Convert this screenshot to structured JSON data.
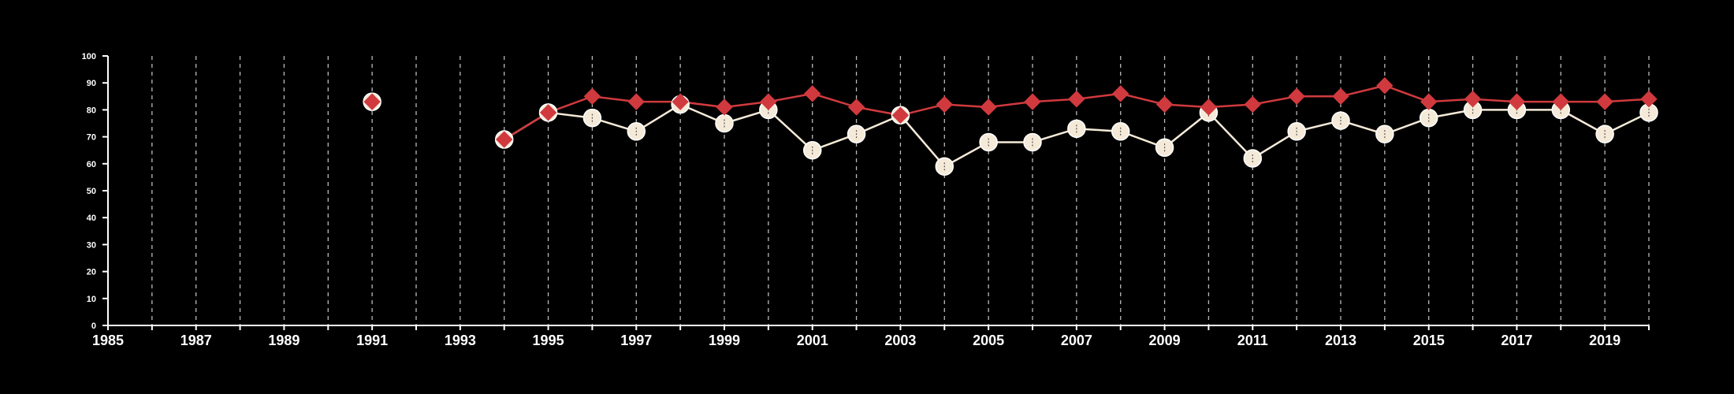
{
  "chart_data": {
    "type": "line",
    "title": "",
    "xlabel": "",
    "ylabel": "",
    "xlim": [
      1985,
      2020
    ],
    "ylim": [
      0,
      100
    ],
    "grid": "vertical dashed lines at every year",
    "x_tick_labels": [
      "1985",
      "1987",
      "1989",
      "1991",
      "1993",
      "1995",
      "1997",
      "1999",
      "2001",
      "2003",
      "2005",
      "2007",
      "2009",
      "2011",
      "2013",
      "2015",
      "2017",
      "2019"
    ],
    "y_tick_labels": [
      "0",
      "10",
      "20",
      "30",
      "40",
      "50",
      "60",
      "70",
      "80",
      "90",
      "100"
    ],
    "series": [
      {
        "marker": "diamond",
        "color": "#d03a3e",
        "points": [
          {
            "x": 1991,
            "y": 83
          },
          {
            "x": 1994,
            "y": 69
          },
          {
            "x": 1995,
            "y": 79
          },
          {
            "x": 1996,
            "y": 85
          },
          {
            "x": 1997,
            "y": 83
          },
          {
            "x": 1998,
            "y": 83
          },
          {
            "x": 1999,
            "y": 81
          },
          {
            "x": 2000,
            "y": 83
          },
          {
            "x": 2001,
            "y": 86
          },
          {
            "x": 2002,
            "y": 81
          },
          {
            "x": 2003,
            "y": 78
          },
          {
            "x": 2004,
            "y": 82
          },
          {
            "x": 2005,
            "y": 81
          },
          {
            "x": 2006,
            "y": 83
          },
          {
            "x": 2007,
            "y": 84
          },
          {
            "x": 2008,
            "y": 86
          },
          {
            "x": 2009,
            "y": 82
          },
          {
            "x": 2010,
            "y": 81
          },
          {
            "x": 2011,
            "y": 82
          },
          {
            "x": 2012,
            "y": 85
          },
          {
            "x": 2013,
            "y": 85
          },
          {
            "x": 2014,
            "y": 89
          },
          {
            "x": 2015,
            "y": 83
          },
          {
            "x": 2016,
            "y": 84
          },
          {
            "x": 2017,
            "y": 83
          },
          {
            "x": 2018,
            "y": 83
          },
          {
            "x": 2019,
            "y": 83
          },
          {
            "x": 2020,
            "y": 84
          }
        ]
      },
      {
        "marker": "circle",
        "color": "#f5ead8",
        "points": [
          {
            "x": 1991,
            "y": 83
          },
          {
            "x": 1994,
            "y": 69
          },
          {
            "x": 1995,
            "y": 79
          },
          {
            "x": 1996,
            "y": 77
          },
          {
            "x": 1997,
            "y": 72
          },
          {
            "x": 1998,
            "y": 82
          },
          {
            "x": 1999,
            "y": 75
          },
          {
            "x": 2000,
            "y": 80
          },
          {
            "x": 2001,
            "y": 65
          },
          {
            "x": 2002,
            "y": 71
          },
          {
            "x": 2003,
            "y": 78
          },
          {
            "x": 2004,
            "y": 59
          },
          {
            "x": 2005,
            "y": 68
          },
          {
            "x": 2006,
            "y": 68
          },
          {
            "x": 2007,
            "y": 73
          },
          {
            "x": 2008,
            "y": 72
          },
          {
            "x": 2009,
            "y": 66
          },
          {
            "x": 2010,
            "y": 79
          },
          {
            "x": 2011,
            "y": 62
          },
          {
            "x": 2012,
            "y": 72
          },
          {
            "x": 2013,
            "y": 76
          },
          {
            "x": 2014,
            "y": 71
          },
          {
            "x": 2015,
            "y": 77
          },
          {
            "x": 2016,
            "y": 80
          },
          {
            "x": 2017,
            "y": 80
          },
          {
            "x": 2018,
            "y": 80
          },
          {
            "x": 2019,
            "y": 71
          },
          {
            "x": 2020,
            "y": 79
          }
        ]
      }
    ]
  }
}
